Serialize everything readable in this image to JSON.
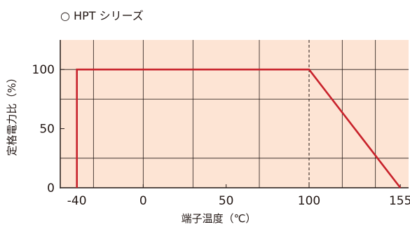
{
  "chart_data": {
    "type": "line",
    "title": "○ HPT シリーズ",
    "xlabel": "端子温度（℃）",
    "ylabel": "定格電力比（%）",
    "xlim": [
      -50,
      160
    ],
    "ylim": [
      0,
      125
    ],
    "xticks": [
      -40,
      0,
      50,
      100,
      155
    ],
    "yticks": [
      0,
      50,
      100
    ],
    "x_gridlines": [
      -30,
      0,
      30,
      70,
      120,
      140
    ],
    "y_gridlines": [
      25,
      75,
      100
    ],
    "series": [
      {
        "points": [
          [
            -40,
            0
          ],
          [
            -40,
            100
          ],
          [
            100,
            100
          ],
          [
            155,
            0
          ]
        ]
      }
    ],
    "reference_lines": [
      {
        "axis": "x",
        "value": 100,
        "style": "dashed"
      }
    ],
    "grid": true,
    "colors": {
      "plot_bg": "#fde4d4",
      "line": "#c8222b",
      "grid": "#231815"
    }
  }
}
